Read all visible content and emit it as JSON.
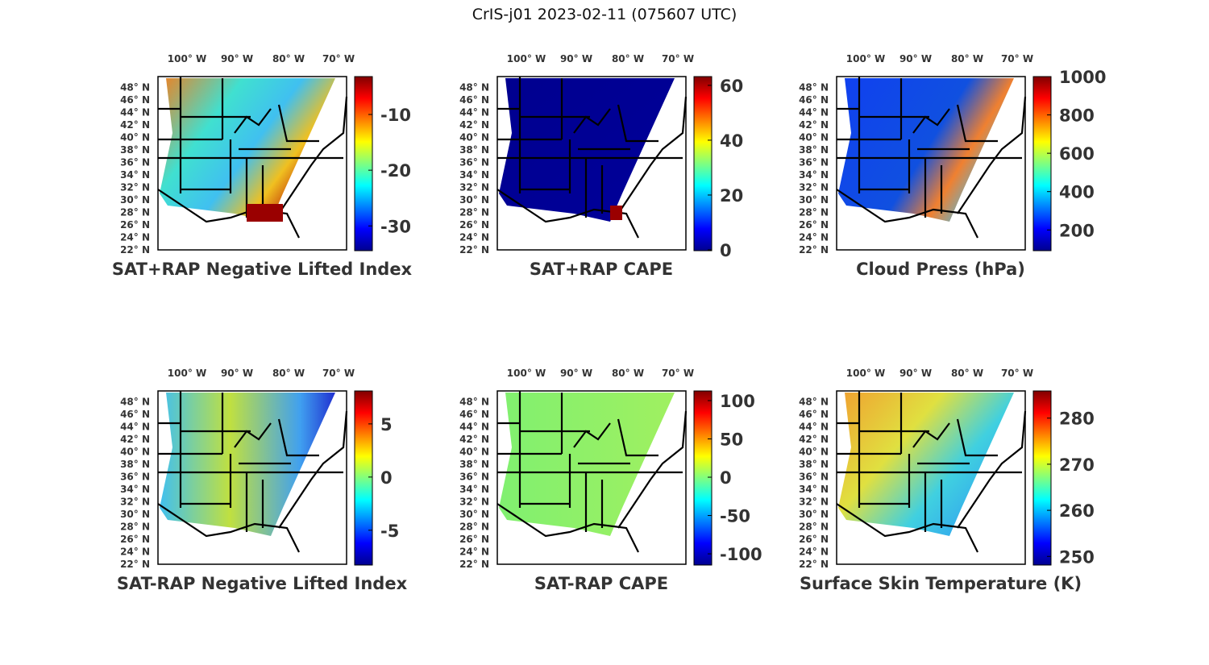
{
  "figure_title": "CrIS-j01 2023-02-11 (075607 UTC)",
  "chart_data": [
    {
      "type": "heatmap",
      "title": "SAT+RAP Negative Lifted Index",
      "clim": [
        -34.3,
        -3.2
      ],
      "cbar_ticks": [
        -10,
        -20,
        -30
      ]
    },
    {
      "type": "heatmap",
      "title": "SAT+RAP CAPE",
      "clim": [
        0,
        63.2
      ],
      "cbar_ticks": [
        60,
        40,
        20,
        0
      ]
    },
    {
      "type": "heatmap",
      "title": "Cloud Press (hPa)",
      "clim": [
        96,
        1000
      ],
      "cbar_ticks": [
        1000,
        800,
        600,
        400,
        200
      ]
    },
    {
      "type": "heatmap",
      "title": "SAT-RAP Negative Lifted Index",
      "clim": [
        -8.2,
        8.1
      ],
      "cbar_ticks": [
        5,
        0,
        -5
      ]
    },
    {
      "type": "heatmap",
      "title": "SAT-RAP CAPE",
      "clim": [
        -113.6,
        112.6
      ],
      "cbar_ticks": [
        100,
        50,
        0,
        -50,
        -100
      ]
    },
    {
      "type": "heatmap",
      "title": "Surface Skin Temperature (K)",
      "clim": [
        248.3,
        285.9
      ],
      "cbar_ticks": [
        280,
        270,
        260,
        250
      ]
    }
  ],
  "lon_labels": [
    "100° W",
    "90° W",
    "80° W",
    "70° W"
  ],
  "lat_labels": [
    "48° N",
    "46° N",
    "44° N",
    "42° N",
    "40° N",
    "38° N",
    "36° N",
    "34° N",
    "32° N",
    "30° N",
    "28° N",
    "26° N",
    "24° N",
    "22° N"
  ]
}
